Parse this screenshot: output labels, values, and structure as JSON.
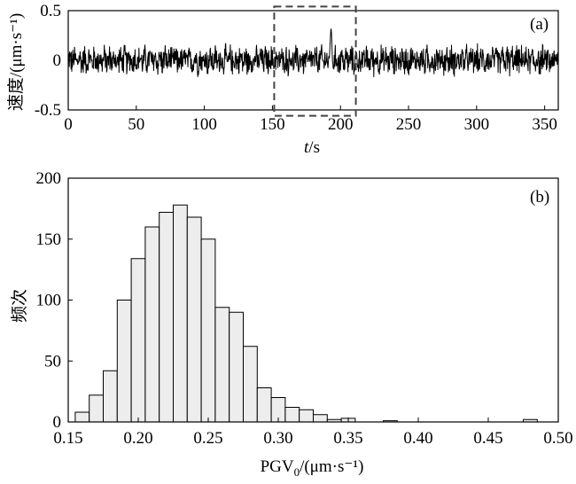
{
  "chart_data": [
    {
      "type": "line",
      "panel_label": "(a)",
      "xlabel_italic": "t",
      "xlabel_unit": "/s",
      "ylabel": "速度/(μm·s⁻¹)",
      "xlim": [
        0,
        360
      ],
      "ylim": [
        -0.5,
        0.5
      ],
      "xticks": [
        "0",
        "50",
        "100",
        "150",
        "200",
        "250",
        "300",
        "350"
      ],
      "yticks": [
        "0.5",
        "0",
        "-0.5"
      ],
      "highlight_box": {
        "x_range": [
          150,
          210
        ],
        "y_range": [
          -0.55,
          0.55
        ],
        "style": "dashed"
      },
      "series": [
        {
          "description_of_signal": "noise",
          "x_start": 0,
          "x_end": 360,
          "amplitude_typical": 0.12,
          "amplitude_peak": 0.36,
          "peak_x": 193
        }
      ],
      "color": "#000000"
    },
    {
      "type": "bar",
      "panel_label": "(b)",
      "xlabel": "PGV",
      "xlabel_sub": "0",
      "xlabel_unit": "/(μm·s⁻¹)",
      "ylabel": "频次",
      "xlim": [
        0.15,
        0.5
      ],
      "ylim": [
        0,
        200
      ],
      "xticks": [
        "0.15",
        "0.20",
        "0.25",
        "0.30",
        "0.35",
        "0.40",
        "0.45",
        "0.50"
      ],
      "yticks": [
        "200",
        "150",
        "100",
        "50",
        "0"
      ],
      "bin_width": 0.01,
      "bins_left": [
        0.155,
        0.165,
        0.175,
        0.185,
        0.195,
        0.205,
        0.215,
        0.225,
        0.235,
        0.245,
        0.255,
        0.265,
        0.275,
        0.285,
        0.295,
        0.305,
        0.315,
        0.325,
        0.335,
        0.345,
        0.375,
        0.475
      ],
      "values": [
        8,
        22,
        42,
        100,
        134,
        160,
        172,
        178,
        168,
        150,
        94,
        90,
        62,
        28,
        20,
        12,
        10,
        6,
        2,
        3,
        1,
        2
      ],
      "bar_fill": "#ededed",
      "bar_stroke": "#000000"
    }
  ]
}
